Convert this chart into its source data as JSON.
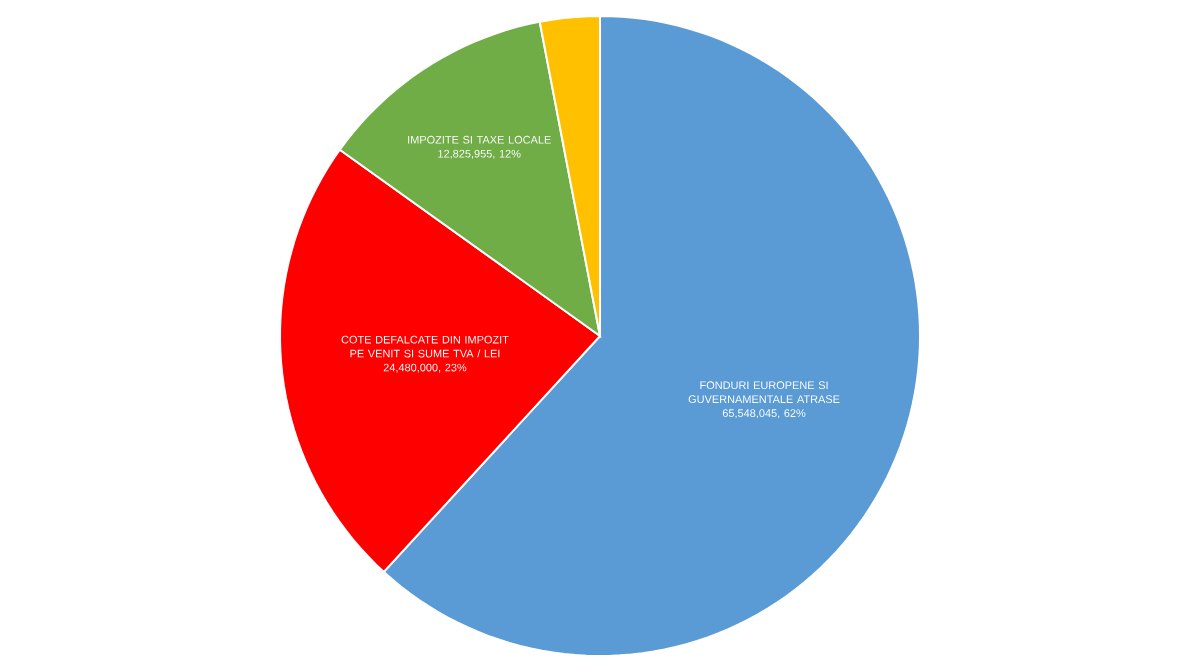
{
  "chart_data": {
    "type": "pie",
    "categories": [
      "FONDURI EUROPENE SI GUVERNAMENTALE ATRASE",
      "COTE DEFALCATE DIN IMPOZIT PE VENIT SI SUME TVA / LEI",
      "IMPOZITE SI TAXE LOCALE",
      null
    ],
    "values": [
      65548045,
      24480000,
      12825955,
      3200000
    ],
    "value_labels": [
      "65,548,045, 62%",
      "24,480,000, 23%",
      "12,825,955, 12%",
      null
    ],
    "colors": [
      "#5b9bd5",
      "#ff0000",
      "#70ad47",
      "#ffc000"
    ]
  }
}
